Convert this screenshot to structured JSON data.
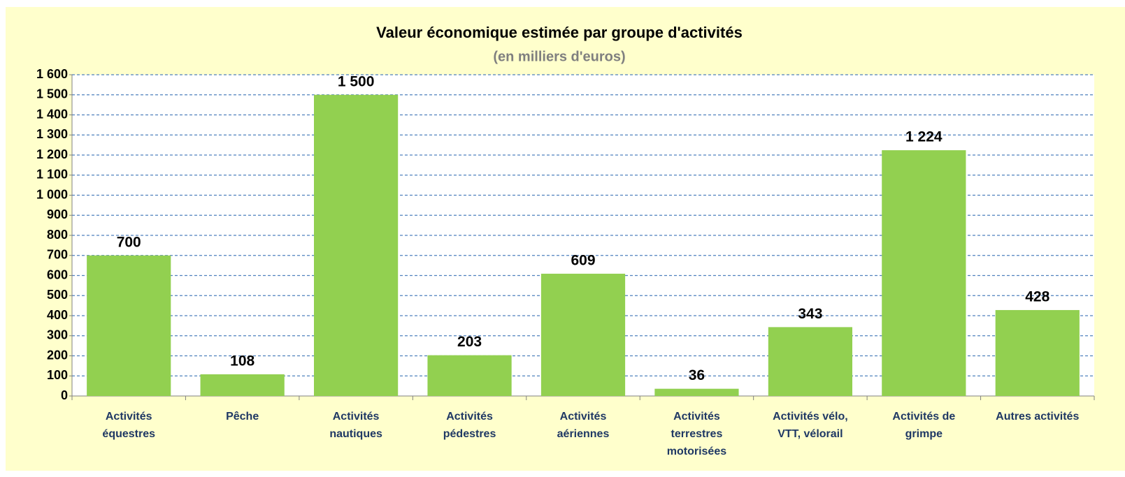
{
  "chart_data": {
    "type": "bar",
    "title": "Valeur économique estimée par groupe d'activités",
    "subtitle": "(en milliers d'euros)",
    "categories": [
      "Activités équestres",
      "Pêche",
      "Activités nautiques",
      "Activités pédestres",
      "Activités aériennes",
      "Activités terrestres motorisées",
      "Activités vélo, VTT, vélorail",
      "Activités de grimpe",
      "Autres activités"
    ],
    "values": [
      700,
      108,
      1500,
      203,
      609,
      36,
      343,
      1224,
      428
    ],
    "value_labels": [
      "700",
      "108",
      "1 500",
      "203",
      "609",
      "36",
      "343",
      "1 224",
      "428"
    ],
    "color": "#92d050",
    "ylim": [
      0,
      1600
    ],
    "yticks": [
      0,
      100,
      200,
      300,
      400,
      500,
      600,
      700,
      800,
      900,
      {
        "value": 1000,
        "label": "1 000"
      },
      {
        "value": 1100,
        "label": "1 100"
      },
      {
        "value": 1200,
        "label": "1 200"
      },
      {
        "value": 1300,
        "label": "1 300"
      },
      {
        "value": 1400,
        "label": "1 400"
      },
      {
        "value": 1500,
        "label": "1 500"
      },
      {
        "value": 1600,
        "label": "1 600"
      }
    ],
    "grid": true
  }
}
